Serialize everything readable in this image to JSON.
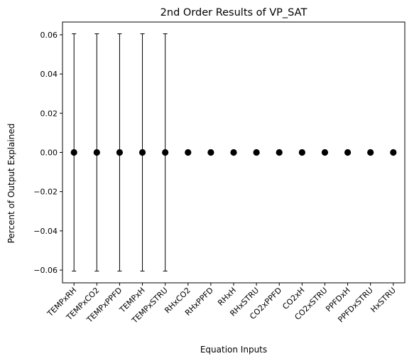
{
  "chart_data": {
    "type": "scatter",
    "title": "2nd Order Results of VP_SAT",
    "xlabel": "Equation Inputs",
    "ylabel": "Percent of Output Explained",
    "categories": [
      "TEMPxRH",
      "TEMPxCO2",
      "TEMPxPPFD",
      "TEMPxH",
      "TEMPxSTRU",
      "RHxCO2",
      "RHxPPFD",
      "RHxH",
      "RHxSTRU",
      "CO2xPPFD",
      "CO2xH",
      "CO2xSTRU",
      "PPFDxH",
      "PPFDxSTRU",
      "HxSTRU"
    ],
    "values": [
      0,
      0,
      0,
      0,
      0,
      0,
      0,
      0,
      0,
      0,
      0,
      0,
      0,
      0,
      0
    ],
    "error_low": [
      -0.0605,
      -0.0605,
      -0.0605,
      -0.0605,
      -0.0605,
      0,
      0,
      0,
      0,
      0,
      0,
      0,
      0,
      0,
      0
    ],
    "error_high": [
      0.0605,
      0.0605,
      0.0605,
      0.0605,
      0.0605,
      0,
      0,
      0,
      0,
      0,
      0,
      0,
      0,
      0,
      0
    ],
    "ylim": [
      -0.0665,
      0.0665
    ],
    "yticks": [
      -0.06,
      -0.04,
      -0.02,
      0.0,
      0.02,
      0.04,
      0.06
    ],
    "ytick_labels": [
      "−0.06",
      "−0.04",
      "−0.02",
      "0.00",
      "0.02",
      "0.04",
      "0.06"
    ],
    "grid": false,
    "legend": "none",
    "marker_color": "#000000"
  }
}
